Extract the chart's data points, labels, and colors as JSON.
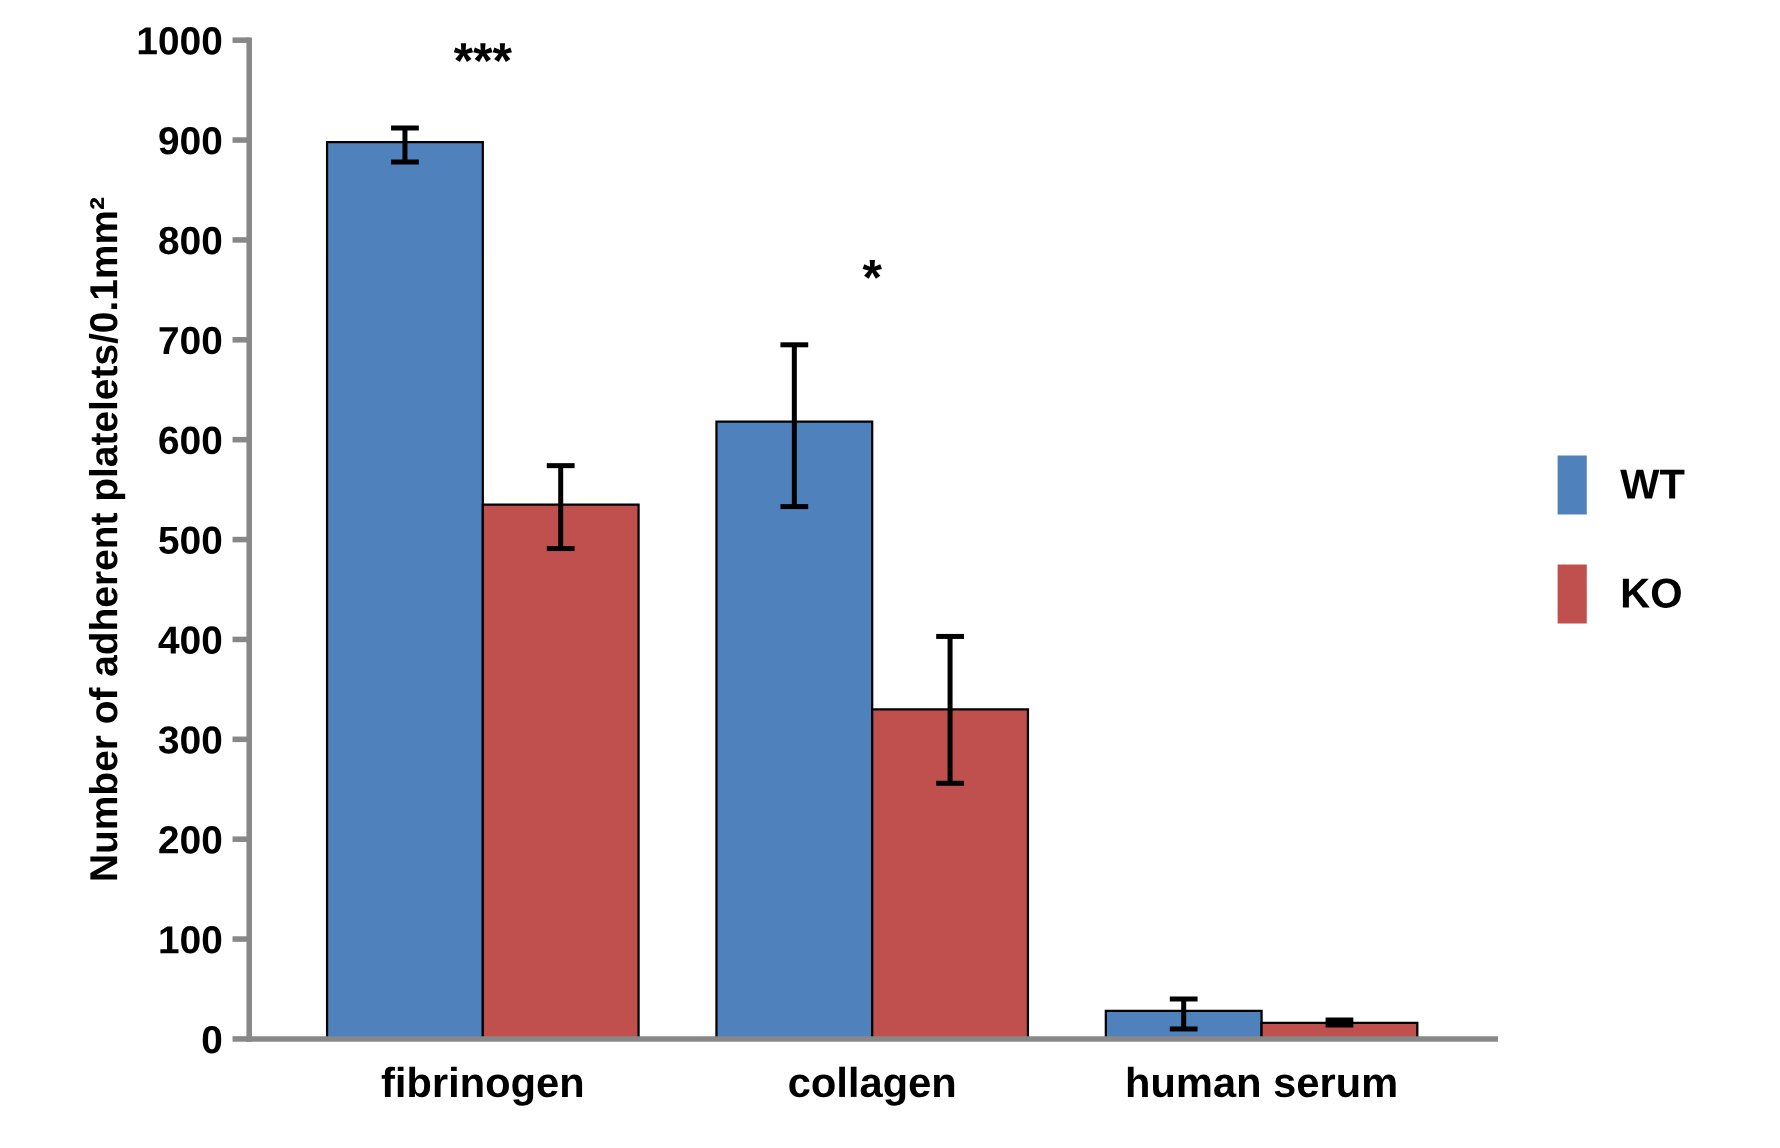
{
  "chart_data": {
    "type": "bar",
    "ylabel": "Number of adherent platelets/0.1mm²",
    "categories": [
      "fibrinogen",
      "collagen",
      "human serum"
    ],
    "series": [
      {
        "name": "WT",
        "color": "#4f81bd",
        "values": [
          898,
          618,
          28
        ],
        "errors": [
          [
            878,
            912
          ],
          [
            533,
            695
          ],
          [
            10,
            40
          ]
        ]
      },
      {
        "name": "KO",
        "color": "#c0504d",
        "values": [
          535,
          330,
          16
        ],
        "errors": [
          [
            491,
            574
          ],
          [
            256,
            403
          ],
          [
            14,
            19
          ]
        ]
      }
    ],
    "ylim": [
      0,
      1000
    ],
    "yticks": [
      0,
      100,
      200,
      300,
      400,
      500,
      600,
      700,
      800,
      900,
      1000
    ],
    "annotations": [
      "***",
      "*"
    ],
    "legend": "right",
    "grid": false
  }
}
